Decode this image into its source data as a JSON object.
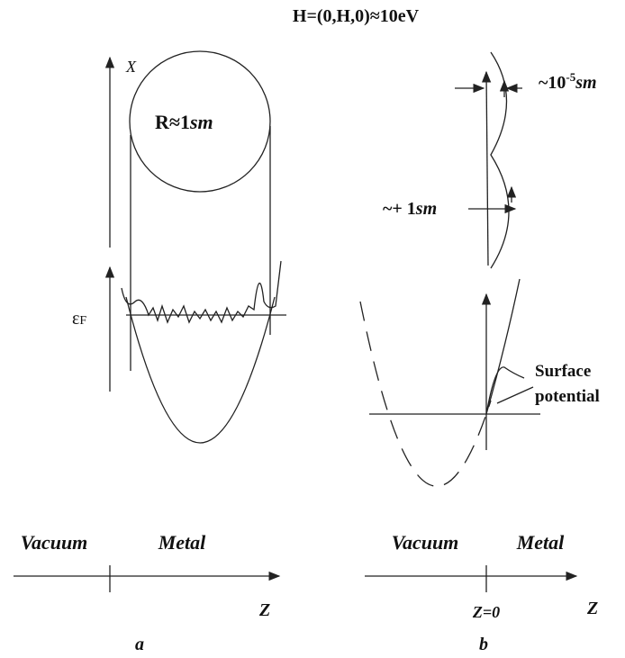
{
  "title": "H=(0,H,0)≈10eV",
  "panel_a": {
    "axis_x_label": "X",
    "radius_label": {
      "main": "R≈1",
      "unit": "sm"
    },
    "fermi_label": {
      "main": "ε",
      "sub": "F"
    },
    "vacuum_label": "Vacuum",
    "metal_label": "Metal",
    "z_label": "Z",
    "caption": "a"
  },
  "panel_b": {
    "amplitude_label": {
      "main": "~10",
      "exp": "-5",
      "unit": "sm"
    },
    "period_label": {
      "main": "~+ 1",
      "unit": "sm"
    },
    "surface_label": [
      "Surface",
      "potential"
    ],
    "vacuum_label": "Vacuum",
    "metal_label": "Metal",
    "origin_label": "Z=0",
    "z_label": "Z",
    "caption": "b"
  }
}
